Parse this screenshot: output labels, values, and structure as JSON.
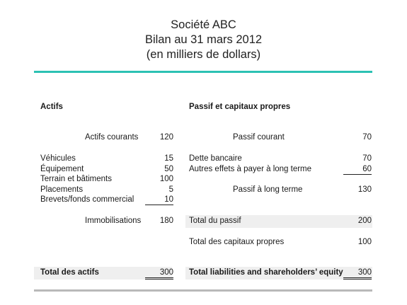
{
  "header": {
    "line1": "Société ABC",
    "line2": "Bilan au 31 mars 2012",
    "line3": "(en milliers de dollars)"
  },
  "assets": {
    "heading": "Actifs",
    "current_label": "Actifs courants",
    "current_value": "120",
    "items": [
      {
        "label": "Véhicules",
        "value": "15"
      },
      {
        "label": "Équipement",
        "value": "50"
      },
      {
        "label": "Terrain et bâtiments",
        "value": "100"
      },
      {
        "label": "Placements",
        "value": "5"
      },
      {
        "label": "Brevets/fonds commercial",
        "value": "10"
      }
    ],
    "fixed_label": "Immobilisations",
    "fixed_value": "180",
    "total_label": "Total des actifs",
    "total_value": "300"
  },
  "liabilities": {
    "heading": "Passif et capitaux propres",
    "current_label": "Passif courant",
    "current_value": "70",
    "items": [
      {
        "label": "Dette bancaire",
        "value": "70"
      },
      {
        "label": "Autres effets à payer à long terme",
        "value": "60"
      }
    ],
    "longterm_label": "Passif à long terme",
    "longterm_value": "130",
    "total_liab_label": "Total du passif",
    "total_liab_value": "200",
    "equity_label": "Total des capitaux propres",
    "equity_value": "100",
    "total_label": "Total liabilities and shareholders’ equity",
    "total_value": "300"
  }
}
